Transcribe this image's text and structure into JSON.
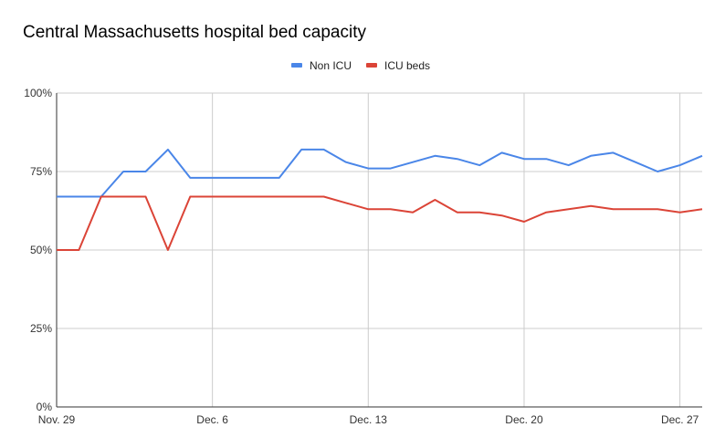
{
  "chart_data": {
    "type": "line",
    "title": "Central Massachusetts hospital bed capacity",
    "xlabel": "",
    "ylabel": "",
    "ylim": [
      0,
      100
    ],
    "y_ticks": [
      {
        "value": 0,
        "label": "0%"
      },
      {
        "value": 25,
        "label": "25%"
      },
      {
        "value": 50,
        "label": "50%"
      },
      {
        "value": 75,
        "label": "75%"
      },
      {
        "value": 100,
        "label": "100%"
      }
    ],
    "x_ticks": [
      {
        "index": 0,
        "label": "Nov. 29"
      },
      {
        "index": 7,
        "label": "Dec. 6"
      },
      {
        "index": 14,
        "label": "Dec. 13"
      },
      {
        "index": 21,
        "label": "Dec. 20"
      },
      {
        "index": 28,
        "label": "Dec. 27"
      }
    ],
    "x_count": 30,
    "grid": true,
    "legend_position": "top-center",
    "series": [
      {
        "name": "Non ICU",
        "color": "#4a86e8",
        "values": [
          67,
          67,
          67,
          75,
          75,
          82,
          73,
          73,
          73,
          73,
          73,
          82,
          82,
          78,
          76,
          76,
          78,
          80,
          79,
          77,
          81,
          79,
          79,
          77,
          80,
          81,
          78,
          75,
          77,
          80
        ]
      },
      {
        "name": "ICU beds",
        "color": "#db4437",
        "values": [
          50,
          50,
          67,
          67,
          67,
          50,
          67,
          67,
          67,
          67,
          67,
          67,
          67,
          65,
          63,
          63,
          62,
          66,
          62,
          62,
          61,
          59,
          62,
          63,
          64,
          63,
          63,
          63,
          62,
          63
        ]
      }
    ]
  }
}
